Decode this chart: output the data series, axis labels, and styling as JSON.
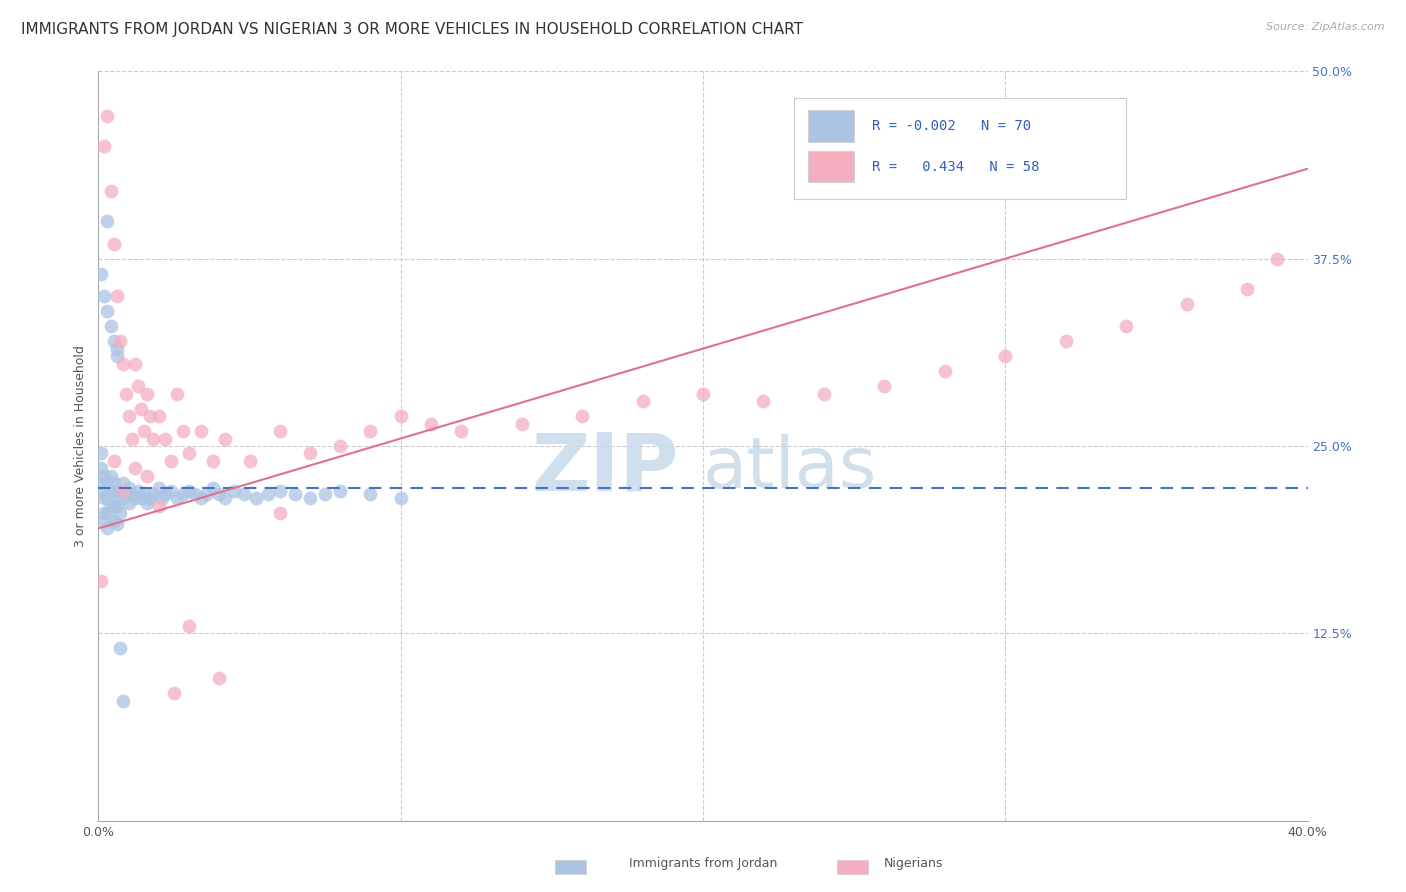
{
  "title": "IMMIGRANTS FROM JORDAN VS NIGERIAN 3 OR MORE VEHICLES IN HOUSEHOLD CORRELATION CHART",
  "source": "Source: ZipAtlas.com",
  "ylabel": "3 or more Vehicles in Household",
  "x_min": 0.0,
  "x_max": 0.4,
  "y_min": 0.0,
  "y_max": 0.5,
  "x_ticks": [
    0.0,
    0.1,
    0.2,
    0.3,
    0.4
  ],
  "y_ticks": [
    0.0,
    0.125,
    0.25,
    0.375,
    0.5
  ],
  "legend_jordan_r": "-0.002",
  "legend_jordan_n": "70",
  "legend_nigeria_r": "0.434",
  "legend_nigeria_n": "58",
  "color_jordan": "#aac4e2",
  "color_nigeria": "#f4aec0",
  "color_jordan_line": "#4472c4",
  "color_nigeria_line": "#e07090",
  "background_color": "#ffffff",
  "grid_color": "#cccccc",
  "title_fontsize": 11,
  "axis_label_fontsize": 9,
  "tick_fontsize": 9,
  "jordan_x": [
    0.001,
    0.001,
    0.001,
    0.002,
    0.002,
    0.002,
    0.002,
    0.002,
    0.003,
    0.003,
    0.003,
    0.003,
    0.004,
    0.004,
    0.004,
    0.005,
    0.005,
    0.005,
    0.006,
    0.006,
    0.006,
    0.007,
    0.007,
    0.008,
    0.008,
    0.009,
    0.01,
    0.01,
    0.011,
    0.012,
    0.013,
    0.014,
    0.015,
    0.016,
    0.017,
    0.018,
    0.02,
    0.021,
    0.022,
    0.024,
    0.026,
    0.028,
    0.03,
    0.032,
    0.034,
    0.036,
    0.038,
    0.04,
    0.042,
    0.045,
    0.048,
    0.052,
    0.056,
    0.06,
    0.065,
    0.07,
    0.075,
    0.08,
    0.09,
    0.1,
    0.001,
    0.002,
    0.003,
    0.003,
    0.004,
    0.005,
    0.006,
    0.006,
    0.007,
    0.008
  ],
  "jordan_y": [
    0.235,
    0.245,
    0.225,
    0.23,
    0.22,
    0.215,
    0.205,
    0.2,
    0.225,
    0.215,
    0.205,
    0.195,
    0.23,
    0.22,
    0.21,
    0.225,
    0.21,
    0.2,
    0.22,
    0.21,
    0.198,
    0.215,
    0.205,
    0.225,
    0.215,
    0.218,
    0.222,
    0.212,
    0.218,
    0.215,
    0.22,
    0.215,
    0.218,
    0.212,
    0.215,
    0.218,
    0.222,
    0.215,
    0.218,
    0.22,
    0.215,
    0.218,
    0.22,
    0.218,
    0.215,
    0.218,
    0.222,
    0.218,
    0.215,
    0.22,
    0.218,
    0.215,
    0.218,
    0.22,
    0.218,
    0.215,
    0.218,
    0.22,
    0.218,
    0.215,
    0.365,
    0.35,
    0.34,
    0.4,
    0.33,
    0.32,
    0.315,
    0.31,
    0.115,
    0.08
  ],
  "nigeria_x": [
    0.001,
    0.002,
    0.003,
    0.004,
    0.005,
    0.006,
    0.007,
    0.008,
    0.009,
    0.01,
    0.011,
    0.012,
    0.013,
    0.014,
    0.015,
    0.016,
    0.017,
    0.018,
    0.02,
    0.022,
    0.024,
    0.026,
    0.028,
    0.03,
    0.034,
    0.038,
    0.042,
    0.05,
    0.06,
    0.07,
    0.08,
    0.09,
    0.1,
    0.11,
    0.12,
    0.14,
    0.16,
    0.18,
    0.2,
    0.22,
    0.24,
    0.26,
    0.28,
    0.3,
    0.32,
    0.34,
    0.36,
    0.38,
    0.39,
    0.005,
    0.008,
    0.012,
    0.016,
    0.02,
    0.025,
    0.03,
    0.04,
    0.06
  ],
  "nigeria_y": [
    0.16,
    0.45,
    0.47,
    0.42,
    0.385,
    0.35,
    0.32,
    0.305,
    0.285,
    0.27,
    0.255,
    0.305,
    0.29,
    0.275,
    0.26,
    0.285,
    0.27,
    0.255,
    0.27,
    0.255,
    0.24,
    0.285,
    0.26,
    0.245,
    0.26,
    0.24,
    0.255,
    0.24,
    0.26,
    0.245,
    0.25,
    0.26,
    0.27,
    0.265,
    0.26,
    0.265,
    0.27,
    0.28,
    0.285,
    0.28,
    0.285,
    0.29,
    0.3,
    0.31,
    0.32,
    0.33,
    0.345,
    0.355,
    0.375,
    0.24,
    0.22,
    0.235,
    0.23,
    0.21,
    0.085,
    0.13,
    0.095,
    0.205
  ]
}
